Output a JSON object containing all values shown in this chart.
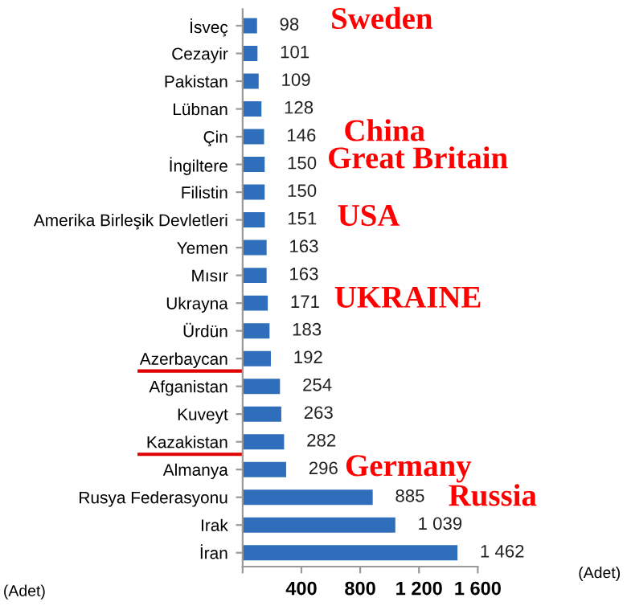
{
  "chart_data": {
    "type": "bar",
    "orientation": "horizontal",
    "categories": [
      "İsveç",
      "Cezayir",
      "Pakistan",
      "Lübnan",
      "Çin",
      "İngiltere",
      "Filistin",
      "Amerika Birleşik Devletleri",
      "Yemen",
      "Mısır",
      "Ukrayna",
      "Ürdün",
      "Azerbaycan",
      "Afganistan",
      "Kuveyt",
      "Kazakistan",
      "Almanya",
      "Rusya Federasyonu",
      "Irak",
      "İran"
    ],
    "values": [
      98,
      101,
      109,
      128,
      146,
      150,
      150,
      151,
      163,
      163,
      171,
      183,
      192,
      254,
      263,
      282,
      296,
      885,
      1039,
      1462
    ],
    "value_labels": [
      "98",
      "101",
      "109",
      "128",
      "146",
      "150",
      "150",
      "151",
      "163",
      "163",
      "171",
      "183",
      "192",
      "254",
      "263",
      "282",
      "296",
      "885",
      "1 039",
      "1 462"
    ],
    "color": "#2f6eba",
    "xlim": [
      0,
      1600
    ],
    "xticks": [
      {
        "value": 0,
        "label": null
      },
      400,
      800,
      {
        "value": 1200,
        "label": "1 200"
      },
      {
        "value": 1600,
        "label": "1 600"
      }
    ],
    "grid": false,
    "legend": false,
    "annotations": [
      "Sweden",
      "China",
      "Great Britain",
      "USA",
      "UKRAINE",
      "Germany",
      "Russia",
      "(Adet)",
      "(Adet)"
    ]
  }
}
